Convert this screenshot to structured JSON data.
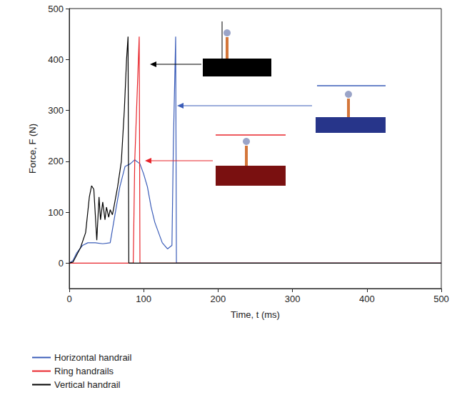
{
  "chart_data": {
    "type": "line",
    "x_label": "Time, t (ms)",
    "y_label": "Force, F (N)",
    "xlim": [
      0,
      500
    ],
    "xticks": [
      0,
      100,
      200,
      300,
      400,
      500
    ],
    "ylim": [
      -50,
      500
    ],
    "yticks": [
      0,
      100,
      200,
      300,
      400,
      500
    ],
    "grid": false,
    "legend": "bottom-left",
    "series": [
      {
        "name": "Horizontal handrail",
        "color": "#3a5cb8",
        "x": [
          0,
          5,
          10,
          18,
          25,
          35,
          45,
          55,
          62,
          68,
          75,
          82,
          88,
          95,
          100,
          105,
          110,
          115,
          120,
          125,
          132,
          138,
          140,
          143,
          144,
          500
        ],
        "values": [
          0,
          5,
          20,
          35,
          40,
          40,
          38,
          40,
          100,
          150,
          190,
          195,
          203,
          195,
          175,
          150,
          110,
          80,
          60,
          40,
          28,
          35,
          240,
          445,
          0,
          0
        ]
      },
      {
        "name": "Ring handrails",
        "color": "#e8242a",
        "x": [
          0,
          86,
          88,
          94,
          95,
          500
        ],
        "values": [
          0,
          0,
          200,
          445,
          0,
          0
        ]
      },
      {
        "name": "Vertical handrail",
        "color": "#000000",
        "x": [
          0,
          5,
          15,
          22,
          27,
          30,
          33,
          37,
          40,
          42,
          45,
          48,
          50,
          53,
          55,
          58,
          60,
          65,
          70,
          74,
          77,
          79,
          80,
          500
        ],
        "values": [
          0,
          2,
          30,
          60,
          130,
          152,
          145,
          45,
          130,
          85,
          120,
          85,
          110,
          90,
          105,
          95,
          110,
          150,
          200,
          300,
          400,
          445,
          0,
          0
        ]
      }
    ]
  }
}
